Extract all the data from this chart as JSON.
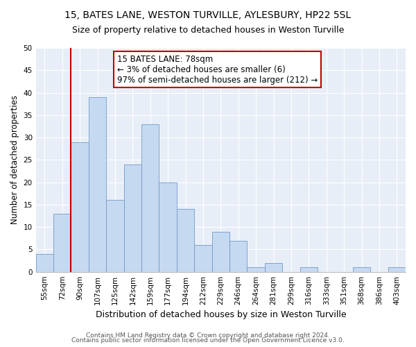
{
  "title": "15, BATES LANE, WESTON TURVILLE, AYLESBURY, HP22 5SL",
  "subtitle": "Size of property relative to detached houses in Weston Turville",
  "xlabel": "Distribution of detached houses by size in Weston Turville",
  "ylabel": "Number of detached properties",
  "bin_labels": [
    "55sqm",
    "72sqm",
    "90sqm",
    "107sqm",
    "125sqm",
    "142sqm",
    "159sqm",
    "177sqm",
    "194sqm",
    "212sqm",
    "229sqm",
    "246sqm",
    "264sqm",
    "281sqm",
    "299sqm",
    "316sqm",
    "333sqm",
    "351sqm",
    "368sqm",
    "386sqm",
    "403sqm"
  ],
  "bar_heights": [
    4,
    13,
    29,
    39,
    16,
    24,
    33,
    20,
    14,
    6,
    9,
    7,
    1,
    2,
    0,
    1,
    0,
    0,
    1,
    0,
    1
  ],
  "bar_color": "#c5d9f1",
  "bar_edge_color": "#7399c6",
  "vline_x": 1.5,
  "vline_color": "#c00000",
  "annotation_title": "15 BATES LANE: 78sqm",
  "annotation_line1": "← 3% of detached houses are smaller (6)",
  "annotation_line2": "97% of semi-detached houses are larger (212) →",
  "annotation_box_edge_color": "#c00000",
  "ylim": [
    0,
    50
  ],
  "yticks": [
    0,
    5,
    10,
    15,
    20,
    25,
    30,
    35,
    40,
    45,
    50
  ],
  "footer1": "Contains HM Land Registry data © Crown copyright and database right 2024.",
  "footer2": "Contains public sector information licensed under the Open Government Licence v3.0.",
  "title_fontsize": 10,
  "subtitle_fontsize": 9,
  "xlabel_fontsize": 9,
  "ylabel_fontsize": 8.5,
  "tick_fontsize": 7.5,
  "annotation_fontsize": 8.5,
  "footer_fontsize": 6.5,
  "background_color": "#ffffff",
  "plot_bg_color": "#e8eef7",
  "grid_color": "#ffffff"
}
